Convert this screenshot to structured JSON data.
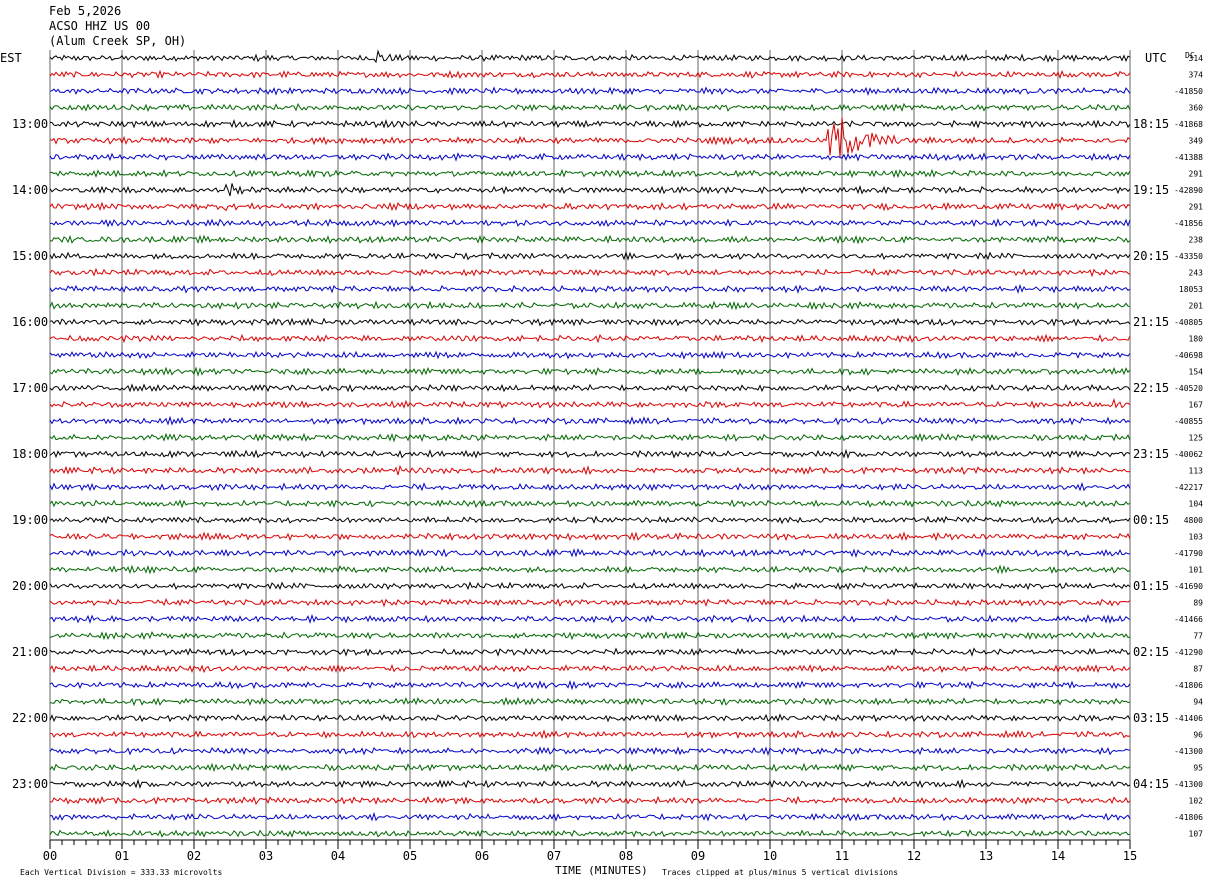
{
  "header": {
    "date": "Feb 5,2026",
    "station": "ACSO HHZ US 00",
    "location": "(Alum Creek SP, OH)"
  },
  "left_zone_label": "EST",
  "right_zone_label": "UTC",
  "dc_label": "DC",
  "footer": {
    "left_note": "Each Vertical Division =  333.33 microvolts",
    "xlabel": "TIME (MINUTES)",
    "right_note": "Traces clipped at plus/minus 5 vertical divisions"
  },
  "colors": {
    "trace_cycle": [
      "#000000",
      "#dd0000",
      "#0000cc",
      "#006600"
    ],
    "gridline": "#000000",
    "background": "#ffffff"
  },
  "chart_data": {
    "type": "line",
    "subtype": "helicorder",
    "title": "",
    "xlabel": "TIME (MINUTES)",
    "x_ticks": [
      "00",
      "01",
      "02",
      "03",
      "04",
      "05",
      "06",
      "07",
      "08",
      "09",
      "10",
      "11",
      "12",
      "13",
      "14",
      "15"
    ],
    "xlim": [
      0,
      15
    ],
    "minutes_per_line": 15,
    "line_count": 48,
    "left_time_labels": [
      {
        "line": 0,
        "text": "EST"
      },
      {
        "line": 4,
        "text": "13:00"
      },
      {
        "line": 8,
        "text": "14:00"
      },
      {
        "line": 12,
        "text": "15:00"
      },
      {
        "line": 16,
        "text": "16:00"
      },
      {
        "line": 20,
        "text": "17:00"
      },
      {
        "line": 24,
        "text": "18:00"
      },
      {
        "line": 28,
        "text": "19:00"
      },
      {
        "line": 32,
        "text": "20:00"
      },
      {
        "line": 36,
        "text": "21:00"
      },
      {
        "line": 40,
        "text": "22:00"
      },
      {
        "line": 44,
        "text": "23:00"
      }
    ],
    "right_time_labels": [
      {
        "line": 0,
        "text": "UTC"
      },
      {
        "line": 4,
        "text": "18:15"
      },
      {
        "line": 8,
        "text": "19:15"
      },
      {
        "line": 12,
        "text": "20:15"
      },
      {
        "line": 16,
        "text": "21:15"
      },
      {
        "line": 20,
        "text": "22:15"
      },
      {
        "line": 24,
        "text": "23:15"
      },
      {
        "line": 28,
        "text": "00:15"
      },
      {
        "line": 32,
        "text": "01:15"
      },
      {
        "line": 36,
        "text": "02:15"
      },
      {
        "line": 40,
        "text": "03:15"
      },
      {
        "line": 44,
        "text": "04:15"
      }
    ],
    "dc_offsets": [
      "314",
      "374",
      "-41850",
      "360",
      "-41868",
      "349",
      "-41388",
      "291",
      "-42890",
      "291",
      "-41856",
      "238",
      "-43350",
      "243",
      "18053",
      "201",
      "-40805",
      "180",
      "-40698",
      "154",
      "-40520",
      "167",
      "-40855",
      "125",
      "-40062",
      "113",
      "-42217",
      "104",
      "4800",
      "103",
      "-41790",
      "101",
      "-41690",
      "89",
      "-41466",
      "77",
      "-41290",
      "87",
      "-41806",
      "94",
      "-41406",
      "96",
      "-41300",
      "95",
      "-41300",
      "102",
      "-41806",
      "107"
    ],
    "noise_amplitude_divisions": 0.6,
    "events": [
      {
        "line": 0,
        "start_min": 4.5,
        "end_min": 5.1,
        "peak_divisions": 2.5
      },
      {
        "line": 5,
        "start_min": 10.75,
        "end_min": 12.2,
        "peak_divisions": 6.0
      },
      {
        "line": 8,
        "start_min": 2.4,
        "end_min": 3.0,
        "peak_divisions": 2.0
      },
      {
        "line": 9,
        "start_min": 2.4,
        "end_min": 2.7,
        "peak_divisions": 1.5
      },
      {
        "line": 21,
        "start_min": 14.75,
        "end_min": 14.85,
        "peak_divisions": 2.0
      },
      {
        "line": 25,
        "start_min": 4.8,
        "end_min": 5.0,
        "peak_divisions": 1.5
      }
    ]
  }
}
